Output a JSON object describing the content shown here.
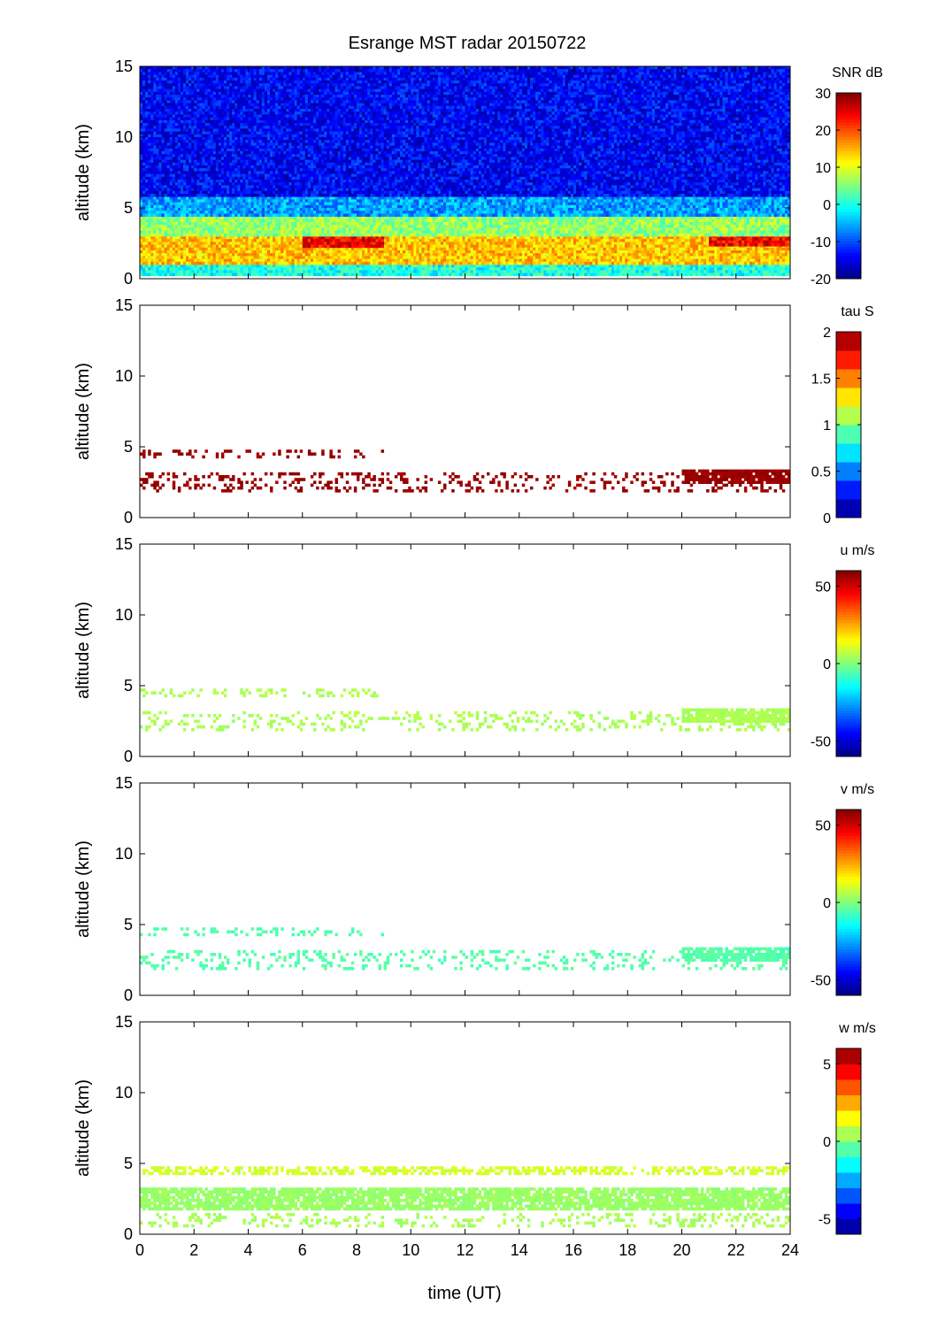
{
  "figure": {
    "title": "Esrange MST radar 20150722",
    "xlabel": "time (UT)",
    "x_ticks": [
      "0",
      "2",
      "4",
      "6",
      "8",
      "10",
      "12",
      "14",
      "16",
      "18",
      "20",
      "22",
      "24"
    ]
  },
  "chart_data": [
    {
      "type": "heatmap",
      "ylabel": "altitude (km)",
      "xlim": [
        0,
        24
      ],
      "ylim": [
        0,
        15
      ],
      "y_ticks": [
        "0",
        "5",
        "10",
        "15"
      ],
      "colorbar": {
        "label": "SNR dB",
        "range": [
          -20,
          30
        ],
        "ticks": [
          "30",
          "20",
          "10",
          "0",
          "-10",
          "-20"
        ],
        "tick_values": [
          30,
          20,
          10,
          0,
          -10,
          -20
        ],
        "colormap": "jet",
        "levels": 64
      },
      "layers": [
        {
          "t0": 0,
          "t1": 24,
          "alt0": 0.3,
          "alt1": 1.2,
          "value": 0,
          "kind": "layer"
        },
        {
          "t0": 0,
          "t1": 24,
          "alt0": 1.2,
          "alt1": 3.2,
          "value": 14,
          "kind": "layer"
        },
        {
          "t0": 6,
          "t1": 9,
          "alt0": 2.4,
          "alt1": 3.0,
          "value": 24,
          "kind": "layer"
        },
        {
          "t0": 21,
          "t1": 24,
          "alt0": 2.5,
          "alt1": 3.1,
          "value": 24,
          "kind": "layer"
        },
        {
          "t0": 0,
          "t1": 24,
          "alt0": 3.2,
          "alt1": 4.6,
          "value": 6,
          "kind": "layer"
        },
        {
          "t0": 0,
          "t1": 24,
          "alt0": 4.6,
          "alt1": 6.0,
          "value": -6,
          "kind": "layer"
        },
        {
          "t0": 0,
          "t1": 24,
          "alt0": 6.0,
          "alt1": 15.0,
          "value": -14,
          "kind": "layer"
        }
      ]
    },
    {
      "type": "heatmap",
      "ylabel": "altitude (km)",
      "xlim": [
        0,
        24
      ],
      "ylim": [
        0,
        15
      ],
      "y_ticks": [
        "0",
        "5",
        "10",
        "15"
      ],
      "colorbar": {
        "label": "tau S",
        "range": [
          0,
          2
        ],
        "ticks": [
          "2",
          "1.5",
          "1",
          "0.5",
          "0"
        ],
        "tick_values": [
          2,
          1.5,
          1,
          0.5,
          0
        ],
        "colormap": "jet",
        "levels": 10
      },
      "layers": [
        {
          "t0": 0,
          "t1": 24,
          "alt0": 1.8,
          "alt1": 3.2,
          "value": 1.95,
          "kind": "sparse"
        },
        {
          "t0": 20,
          "t1": 24,
          "alt0": 2.4,
          "alt1": 3.4,
          "value": 1.95,
          "kind": "dense"
        },
        {
          "t0": 0,
          "t1": 9,
          "alt0": 4.2,
          "alt1": 4.8,
          "value": 1.95,
          "kind": "sparse"
        }
      ]
    },
    {
      "type": "heatmap",
      "ylabel": "altitude (km)",
      "xlim": [
        0,
        24
      ],
      "ylim": [
        0,
        15
      ],
      "y_ticks": [
        "0",
        "5",
        "10",
        "15"
      ],
      "colorbar": {
        "label": "u m/s",
        "range": [
          -60,
          60
        ],
        "ticks": [
          "50",
          "0",
          "-50"
        ],
        "tick_values": [
          50,
          0,
          -50
        ],
        "colormap": "jet",
        "levels": 64
      },
      "layers": [
        {
          "t0": 0,
          "t1": 24,
          "alt0": 1.8,
          "alt1": 3.2,
          "value": 5,
          "kind": "sparse"
        },
        {
          "t0": 20,
          "t1": 24,
          "alt0": 2.4,
          "alt1": 3.4,
          "value": 5,
          "kind": "dense"
        },
        {
          "t0": 0,
          "t1": 9,
          "alt0": 4.2,
          "alt1": 4.8,
          "value": 5,
          "kind": "sparse"
        }
      ]
    },
    {
      "type": "heatmap",
      "ylabel": "altitude (km)",
      "xlim": [
        0,
        24
      ],
      "ylim": [
        0,
        15
      ],
      "y_ticks": [
        "0",
        "5",
        "10",
        "15"
      ],
      "colorbar": {
        "label": "v m/s",
        "range": [
          -60,
          60
        ],
        "ticks": [
          "50",
          "0",
          "-50"
        ],
        "tick_values": [
          50,
          0,
          -50
        ],
        "colormap": "jet",
        "levels": 64
      },
      "layers": [
        {
          "t0": 0,
          "t1": 24,
          "alt0": 1.8,
          "alt1": 3.2,
          "value": -5,
          "kind": "sparse"
        },
        {
          "t0": 20,
          "t1": 24,
          "alt0": 2.4,
          "alt1": 3.4,
          "value": -5,
          "kind": "dense"
        },
        {
          "t0": 0,
          "t1": 9,
          "alt0": 4.2,
          "alt1": 4.8,
          "value": -5,
          "kind": "sparse"
        }
      ]
    },
    {
      "type": "heatmap",
      "ylabel": "altitude (km)",
      "xlim": [
        0,
        24
      ],
      "ylim": [
        0,
        15
      ],
      "y_ticks": [
        "0",
        "5",
        "10",
        "15"
      ],
      "colorbar": {
        "label": "w m/s",
        "range": [
          -6,
          6
        ],
        "ticks": [
          "5",
          "0",
          "-5"
        ],
        "tick_values": [
          5,
          0,
          -5
        ],
        "colormap": "jet",
        "levels": 12
      },
      "layers": [
        {
          "t0": 0,
          "t1": 24,
          "alt0": 1.7,
          "alt1": 3.3,
          "value": 0.3,
          "kind": "dense"
        },
        {
          "t0": 0,
          "t1": 24,
          "alt0": 4.2,
          "alt1": 4.8,
          "value": 1.0,
          "kind": "medium"
        },
        {
          "t0": 0,
          "t1": 24,
          "alt0": 0.5,
          "alt1": 1.5,
          "value": 0.5,
          "kind": "sparse"
        }
      ]
    }
  ]
}
